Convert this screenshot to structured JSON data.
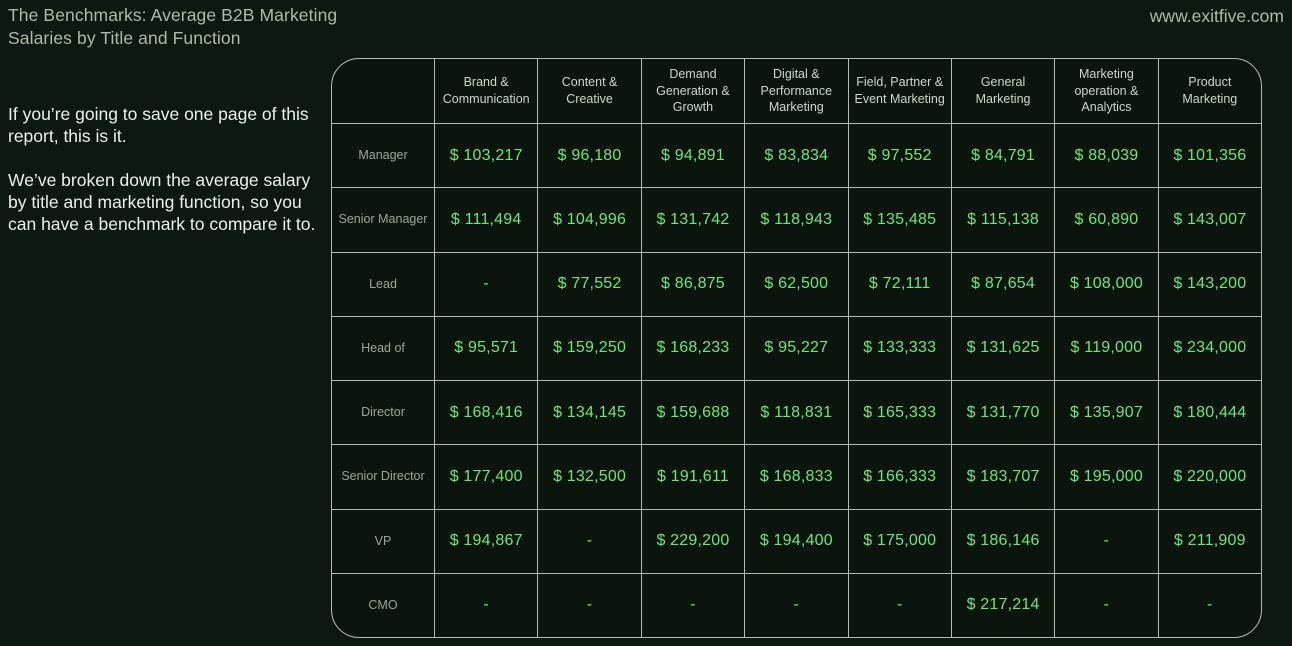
{
  "page": {
    "title": "The Benchmarks: Average B2B Marketing\nSalaries by Title and Function",
    "site_url": "www.exitfive.com",
    "intro_paragraph_1": "If you’re going to save one page of this report, this is it.",
    "intro_paragraph_2": "We’ve broken down the average salary by title and marketing function, so you can have a benchmark to compare it to."
  },
  "colors": {
    "background": "#0d1910",
    "cell_background": "#0b150d",
    "table_border": "#b2bcae",
    "value_green": "#68e87a",
    "muted_text": "#aeb9ab",
    "body_text": "#ecf1e8",
    "row_label_text": "#9aa698"
  },
  "chart_data": {
    "type": "table",
    "title": "The Benchmarks: Average B2B Marketing Salaries by Title and Function",
    "columns": [
      "Brand & Communication",
      "Content & Creative",
      "Demand Generation & Growth",
      "Digital & Performance Marketing",
      "Field, Partner & Event Marketing",
      "General Marketing",
      "Marketing operation & Analytics",
      "Product Marketing"
    ],
    "rows": [
      {
        "label": "Manager",
        "values": [
          "$ 103,217",
          "$ 96,180",
          "$ 94,891",
          "$ 83,834",
          "$ 97,552",
          "$ 84,791",
          "$ 88,039",
          "$ 101,356"
        ]
      },
      {
        "label": "Senior Manager",
        "values": [
          "$ 111,494",
          "$ 104,996",
          "$ 131,742",
          "$ 118,943",
          "$ 135,485",
          "$ 115,138",
          "$ 60,890",
          "$ 143,007"
        ]
      },
      {
        "label": "Lead",
        "values": [
          "-",
          "$ 77,552",
          "$ 86,875",
          "$ 62,500",
          "$ 72,111",
          "$ 87,654",
          "$ 108,000",
          "$ 143,200"
        ]
      },
      {
        "label": "Head of",
        "values": [
          "$ 95,571",
          "$ 159,250",
          "$ 168,233",
          "$ 95,227",
          "$ 133,333",
          "$ 131,625",
          "$ 119,000",
          "$ 234,000"
        ]
      },
      {
        "label": "Director",
        "values": [
          "$ 168,416",
          "$ 134,145",
          "$ 159,688",
          "$ 118,831",
          "$ 165,333",
          "$ 131,770",
          "$ 135,907",
          "$ 180,444"
        ]
      },
      {
        "label": "Senior Director",
        "values": [
          "$ 177,400",
          "$ 132,500",
          "$ 191,611",
          "$ 168,833",
          "$ 166,333",
          "$ 183,707",
          "$ 195,000",
          "$ 220,000"
        ]
      },
      {
        "label": "VP",
        "values": [
          "$ 194,867",
          "-",
          "$ 229,200",
          "$ 194,400",
          "$ 175,000",
          "$ 186,146",
          "-",
          "$ 211,909"
        ]
      },
      {
        "label": "CMO",
        "values": [
          "-",
          "-",
          "-",
          "-",
          "-",
          "$ 217,214",
          "-",
          "-"
        ]
      }
    ]
  }
}
